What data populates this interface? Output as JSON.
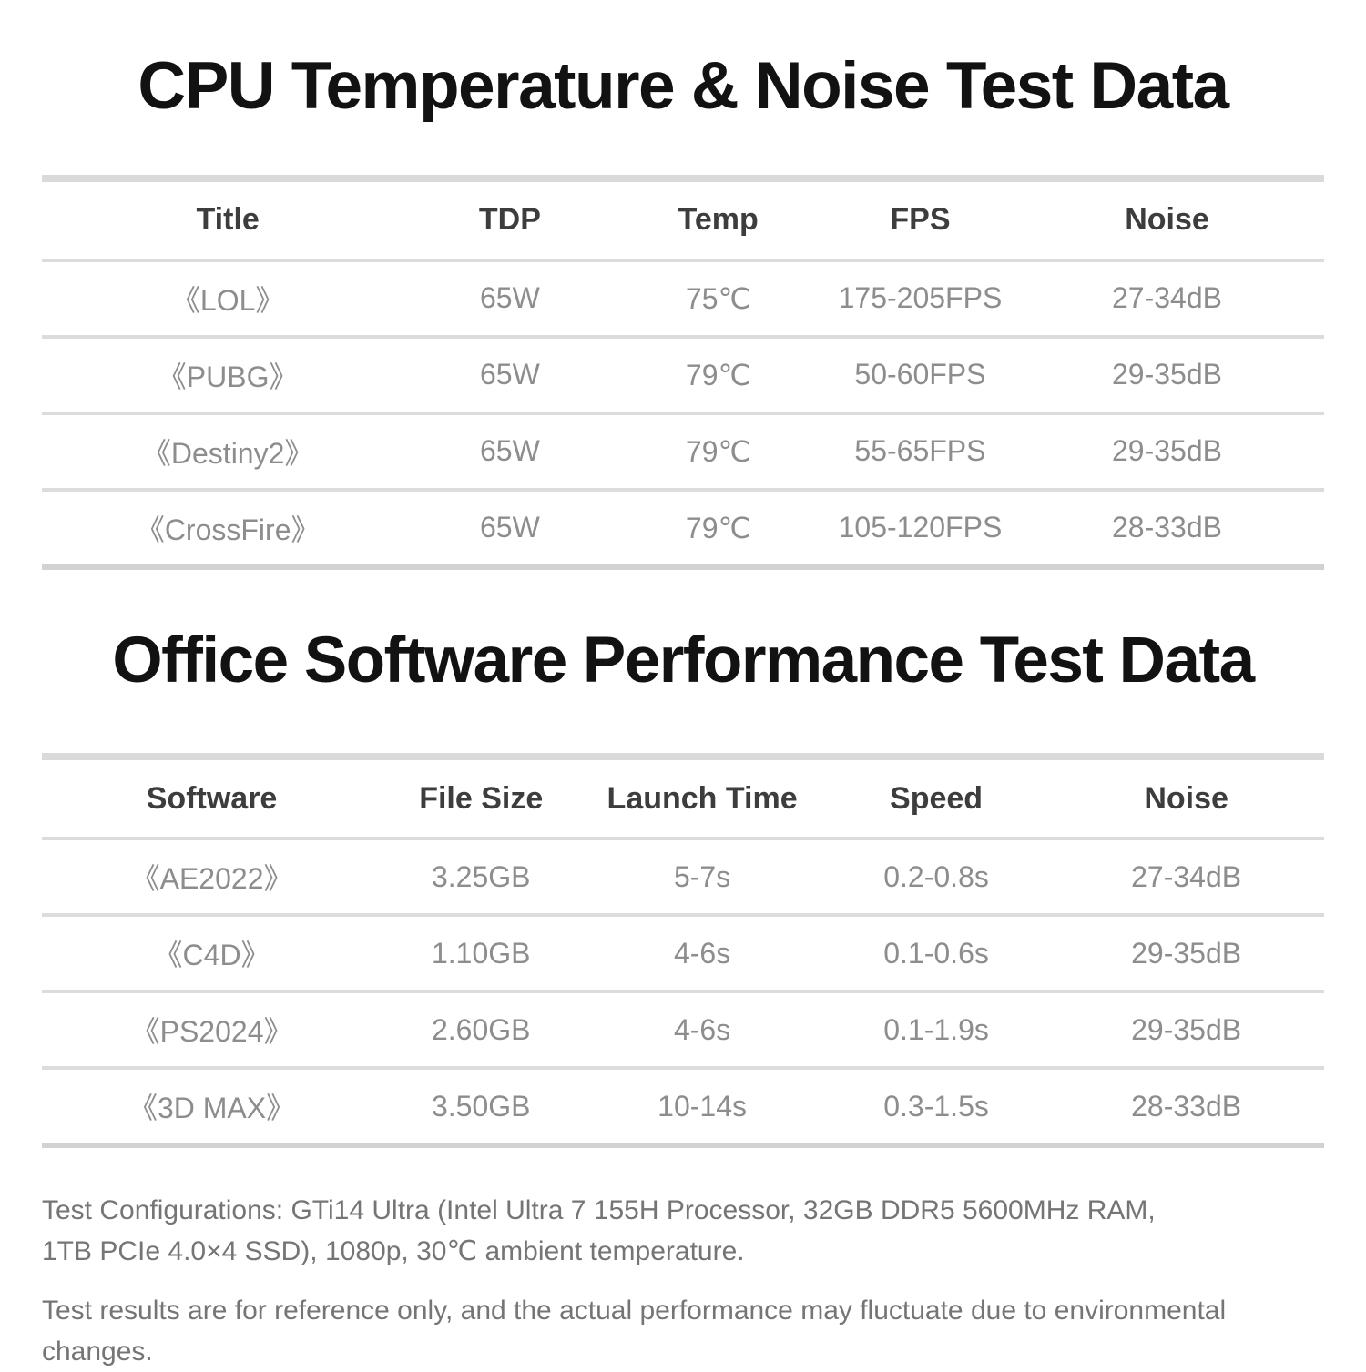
{
  "section1": {
    "title": "CPU Temperature & Noise Test Data",
    "table": {
      "headers": [
        "Title",
        "TDP",
        "Temp",
        "FPS",
        "Noise"
      ],
      "rows": [
        [
          "《LOL》",
          "65W",
          "75℃",
          "175-205FPS",
          "27-34dB"
        ],
        [
          "《PUBG》",
          "65W",
          "79℃",
          "50-60FPS",
          "29-35dB"
        ],
        [
          "《Destiny2》",
          "65W",
          "79℃",
          "55-65FPS",
          "29-35dB"
        ],
        [
          "《CrossFire》",
          "65W",
          "79℃",
          "105-120FPS",
          "28-33dB"
        ]
      ]
    }
  },
  "section2": {
    "title": "Office Software Performance Test Data",
    "table": {
      "headers": [
        "Software",
        "File Size",
        "Launch Time",
        "Speed",
        "Noise"
      ],
      "rows": [
        [
          "《AE2022》",
          "3.25GB",
          "5-7s",
          "0.2-0.8s",
          "27-34dB"
        ],
        [
          "《C4D》",
          "1.10GB",
          "4-6s",
          "0.1-0.6s",
          "29-35dB"
        ],
        [
          "《PS2024》",
          "2.60GB",
          "4-6s",
          "0.1-1.9s",
          "29-35dB"
        ],
        [
          "《3D MAX》",
          "3.50GB",
          "10-14s",
          "0.3-1.5s",
          "28-33dB"
        ]
      ]
    }
  },
  "footer": {
    "config_note": "Test Configurations: GTi14 Ultra (Intel Ultra 7 155H Processor, 32GB DDR5 5600MHz RAM,\n1TB PCIe 4.0×4 SSD), 1080p, 30℃ ambient temperature.",
    "disclaimer": "Test results are for reference only, and the actual performance may fluctuate due to environmental changes."
  },
  "colors": {
    "background": "#ffffff",
    "heading_text": "#121212",
    "table_header_text": "#3d3d3d",
    "table_cell_text": "#8d8d8d",
    "divider": "#dcdcdc",
    "footer_text": "#757575"
  }
}
